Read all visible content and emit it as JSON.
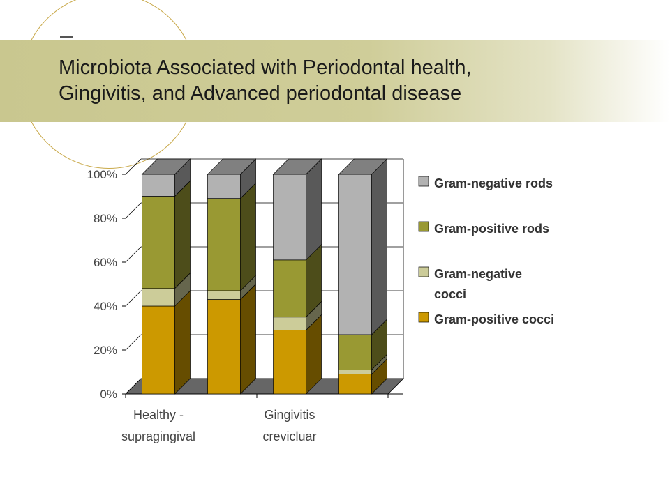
{
  "title_lines": [
    "Microbiota Associated with Periodontal health,",
    "Gingivitis, and Advanced periodontal disease"
  ],
  "chart_data": {
    "type": "bar",
    "stacked": true,
    "three_d": true,
    "percent_axis": true,
    "categories": [
      "Healthy - supragingival",
      "",
      "Gingivitis crevicluar",
      ""
    ],
    "category_label_lines": [
      [
        "Healthy -",
        "supragingival"
      ],
      [
        "Gingivitis",
        "crevicluar"
      ]
    ],
    "series": [
      {
        "name": "Gram-positive cocci",
        "color": "#cc9900",
        "values": [
          40,
          43,
          29,
          9
        ]
      },
      {
        "name": "Gram-negative cocci",
        "color": "#cccc99",
        "values": [
          8,
          4,
          6,
          2
        ]
      },
      {
        "name": "Gram-positive rods",
        "color": "#999933",
        "values": [
          42,
          42,
          26,
          16
        ]
      },
      {
        "name": "Gram-negative rods",
        "color": "#b2b2b2",
        "values": [
          10,
          11,
          39,
          73
        ]
      }
    ],
    "legend_order": [
      {
        "name": "Gram-negative rods",
        "color": "#b2b2b2"
      },
      {
        "name": "Gram-positive rods",
        "color": "#999933"
      },
      {
        "name": "Gram-negative cocci",
        "color": "#cccc99"
      },
      {
        "name": "Gram-positive cocci",
        "color": "#cc9900"
      }
    ],
    "y_ticks": [
      "0%",
      "20%",
      "40%",
      "60%",
      "80%",
      "100%"
    ],
    "ylim": [
      0,
      100
    ],
    "grid": true,
    "legend_position": "right"
  }
}
